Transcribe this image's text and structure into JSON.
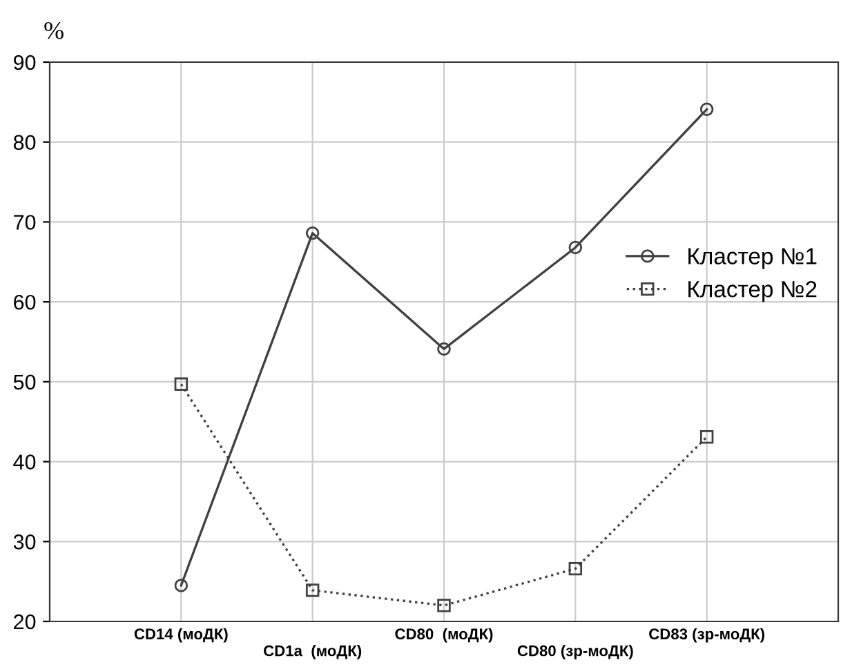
{
  "chart_data": {
    "type": "line",
    "ylabel": "%",
    "categories": [
      "CD14 (моДК)",
      "CD1a  (моДК)",
      "CD80  (моДК)",
      "CD80 (зр-моДК)",
      "CD83 (зр-моДК)"
    ],
    "series": [
      {
        "name": "Кластер №1",
        "color": "#404040",
        "values": [
          24.5,
          68.6,
          54.1,
          66.8,
          84.1
        ],
        "marker": "circle",
        "line_style": "solid"
      },
      {
        "name": "Кластер №2",
        "color": "#404040",
        "values": [
          49.7,
          23.9,
          22.0,
          26.6,
          43.1
        ],
        "marker": "square",
        "line_style": "dotted"
      }
    ],
    "ylim": [
      20,
      90
    ],
    "yticks": [
      20,
      30,
      40,
      50,
      60,
      70,
      80,
      90
    ],
    "grid": true,
    "legend": "right"
  }
}
